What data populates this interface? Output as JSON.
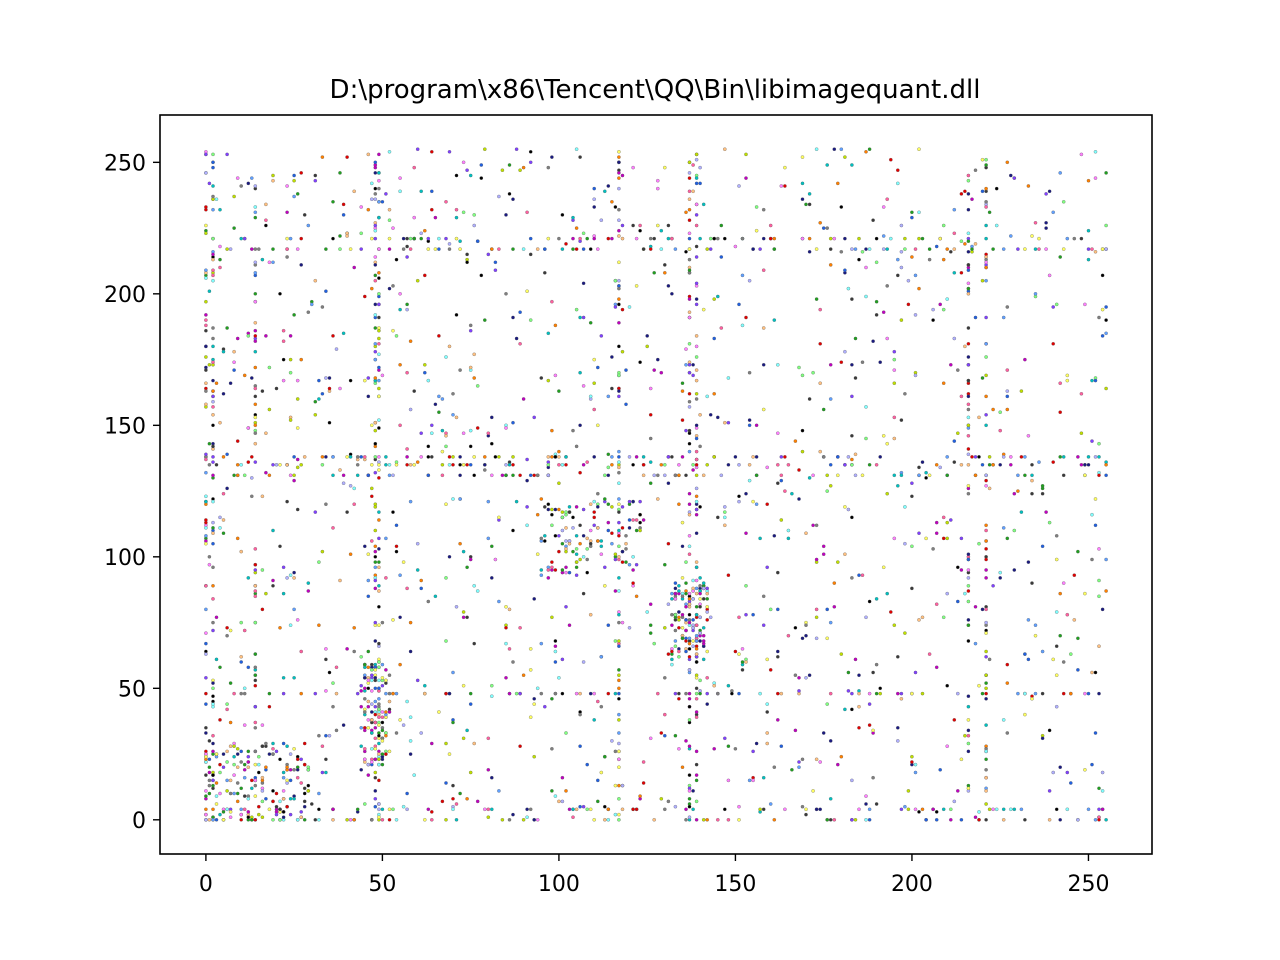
{
  "chart_data": {
    "type": "scatter",
    "title": "D:\\program\\x86\\Tencent\\QQ\\Bin\\libimagequant.dll",
    "xlabel": "",
    "ylabel": "",
    "xlim": [
      -13,
      268
    ],
    "ylim": [
      -13,
      268
    ],
    "xticks": [
      0,
      50,
      100,
      150,
      200,
      250
    ],
    "yticks": [
      0,
      50,
      100,
      150,
      200,
      250
    ],
    "grid": false,
    "legend": "none",
    "point_palette": [
      "#000000",
      "#3a3a3a",
      "#7f7f7f",
      "#1a1a80",
      "#2060e0",
      "#60a0ff",
      "#00c0c0",
      "#80ffff",
      "#20a020",
      "#80ff80",
      "#c0e000",
      "#ffff60",
      "#ff8000",
      "#ffc080",
      "#e00000",
      "#ff60a0",
      "#c000c0",
      "#ff80ff",
      "#8040ff",
      "#b0b0ff"
    ],
    "dense_rows": [
      0,
      4,
      48,
      131,
      135,
      138,
      217,
      221
    ],
    "dense_columns": [
      0,
      2,
      14,
      48,
      49,
      117,
      137,
      139,
      216,
      221
    ],
    "dense_blocks": [
      {
        "x": [
          94,
          124
        ],
        "y": [
          93,
          122
        ]
      },
      {
        "x": [
          132,
          142
        ],
        "y": [
          60,
          90
        ]
      },
      {
        "x": [
          44,
          52
        ],
        "y": [
          20,
          60
        ]
      }
    ]
  }
}
